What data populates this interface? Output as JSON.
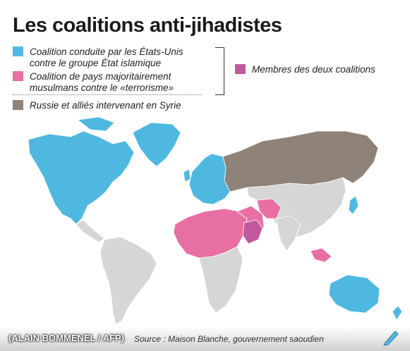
{
  "title": "Les coalitions anti-jihadistes",
  "legend": {
    "items": [
      {
        "label_lines": [
          "Coalition conduite par les États-Unis",
          "contre le groupe État islamique"
        ],
        "color": "#4fb8e0"
      },
      {
        "label_lines": [
          "Coalition de pays majoritairement",
          "musulmans contre le «terrorisme»"
        ],
        "color": "#e86fa2"
      },
      {
        "label_lines": [
          "Russie et alliés intervenant en Syrie"
        ],
        "color": "#8e8279"
      },
      {
        "label_lines": [
          "Membres des deux coalitions"
        ],
        "color": "#c05a9c"
      }
    ]
  },
  "map": {
    "land_color": "#d6d6d6",
    "border_color": "#ffffff"
  },
  "footer": {
    "credit": "(ALAIN BOMMENEL / AFP)",
    "source_text": "Source : Maison Blanche, gouvernement saoudien"
  }
}
